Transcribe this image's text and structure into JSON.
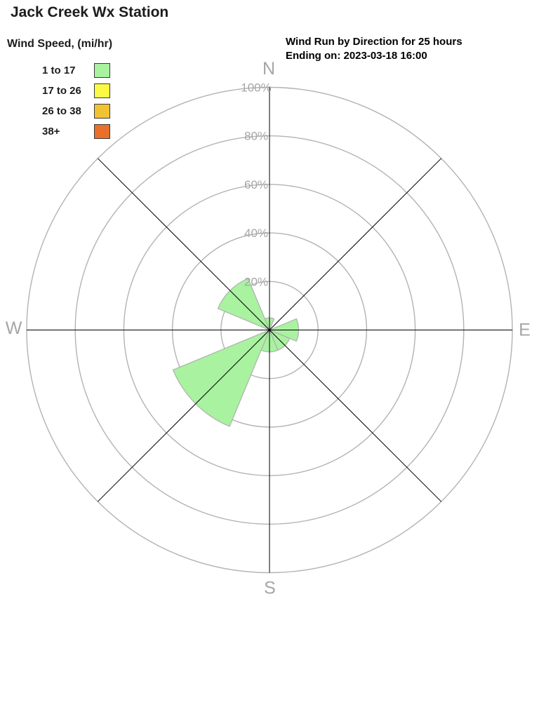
{
  "header": {
    "title": "Jack Creek Wx Station",
    "subtitle_line1": "Wind Run by Direction for 25 hours",
    "subtitle_line2": "Ending on: 2023-03-18 16:00"
  },
  "legend": {
    "title": "Wind Speed, (mi/hr)",
    "items": [
      {
        "label": "1 to 17",
        "color": "#a9f2a0"
      },
      {
        "label": "17 to 26",
        "color": "#fafa45"
      },
      {
        "label": "26 to 38",
        "color": "#f1c232"
      },
      {
        "label": "38+",
        "color": "#e8702a"
      }
    ]
  },
  "chart_data": {
    "type": "windrose-polar-bar",
    "title": "Wind Run by Direction for 25 hours",
    "subtitle": "Ending on: 2023-03-18 16:00",
    "units": "percent of scale",
    "directions": [
      "N",
      "NE",
      "E",
      "SE",
      "S",
      "SW",
      "W",
      "NW"
    ],
    "sector_width_deg": 45,
    "ring_percents": [
      20,
      40,
      60,
      80,
      100
    ],
    "ring_label_suffix": "%",
    "compass_labels": [
      "N",
      "E",
      "S",
      "W"
    ],
    "max_percent": 100,
    "grid": true,
    "series": [
      {
        "name": "1 to 17",
        "color": "#a9f2a0",
        "values": [
          5,
          0,
          12,
          9,
          9,
          43,
          0,
          23
        ]
      },
      {
        "name": "17 to 26",
        "color": "#fafa45",
        "values": [
          0,
          0,
          0,
          0,
          0,
          0,
          0,
          0
        ]
      },
      {
        "name": "26 to 38",
        "color": "#f1c232",
        "values": [
          0,
          0,
          0,
          0,
          0,
          0,
          0,
          0
        ]
      },
      {
        "name": "38+",
        "color": "#e8702a",
        "values": [
          0,
          0,
          0,
          0,
          0,
          0,
          0,
          0
        ]
      }
    ]
  },
  "colors": {
    "ring": "#b3b3b3",
    "axis": "#000000",
    "gray_label": "#a6a6a6",
    "petal_stroke": "#b0b0b0",
    "swatch_border": "#3a3a3a"
  }
}
